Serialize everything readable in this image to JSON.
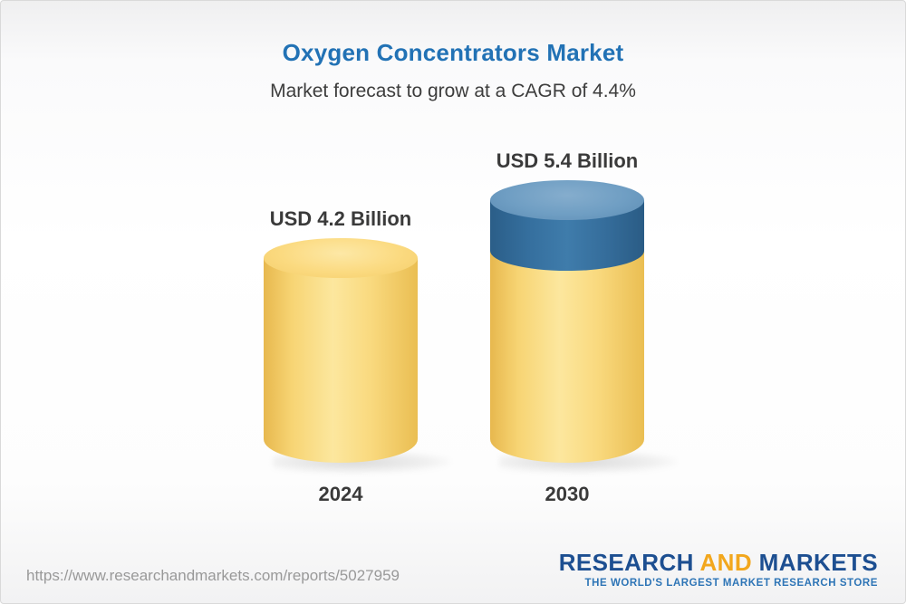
{
  "header": {
    "title": "Oxygen Concentrators Market",
    "subtitle": "Market forecast to grow at a CAGR of 4.4%"
  },
  "chart_data": {
    "type": "bar",
    "title": "Oxygen Concentrators Market",
    "subtitle": "Market forecast to grow at a CAGR of 4.4%",
    "cagr_percent": 4.4,
    "unit": "USD Billion",
    "categories": [
      "2024",
      "2030"
    ],
    "values": [
      4.2,
      5.4
    ],
    "bar_labels": [
      "USD 4.2 Billion",
      "USD 5.4 Billion"
    ],
    "ylim": [
      0,
      5.4
    ],
    "grid": false,
    "legend_position": "none",
    "colors": {
      "base_segment": "#F6CE63",
      "growth_segment": "#2F6590",
      "title": "#2272B5"
    }
  },
  "footer": {
    "url": "https://www.researchandmarkets.com/reports/5027959",
    "logo": {
      "word1": "RESEARCH",
      "word2": "AND",
      "word3": "MARKETS",
      "tagline": "THE WORLD'S LARGEST MARKET RESEARCH STORE"
    }
  }
}
